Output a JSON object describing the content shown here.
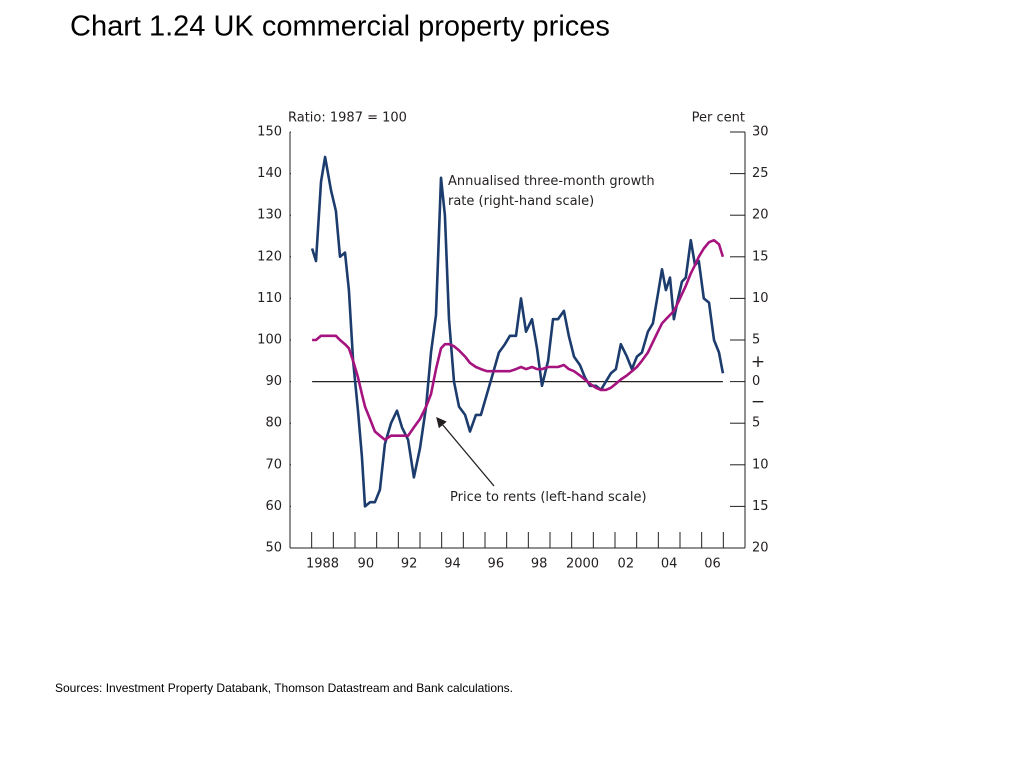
{
  "chart_data": {
    "type": "line",
    "title": "Chart 1.24  UK commercial property prices",
    "ylabel": "Ratio:  1987 = 100",
    "y2label": "Per cent",
    "sources": "Sources:  Investment Property Databank, Thomson Datastream and Bank calculations.",
    "sign_labels": [
      "+",
      "−"
    ],
    "xlim": [
      1987,
      2008
    ],
    "xticks": [
      1988,
      1989,
      1990,
      1991,
      1992,
      1993,
      1994,
      1995,
      1996,
      1997,
      1998,
      1999,
      2000,
      2001,
      2002,
      2003,
      2004,
      2005,
      2006,
      2007
    ],
    "xlabels": [
      {
        "value": 1988,
        "label": "1988"
      },
      {
        "value": 1990,
        "label": "90"
      },
      {
        "value": 1992,
        "label": "92"
      },
      {
        "value": 1994,
        "label": "94"
      },
      {
        "value": 1996,
        "label": "96"
      },
      {
        "value": 1998,
        "label": "98"
      },
      {
        "value": 2000,
        "label": "2000"
      },
      {
        "value": 2002,
        "label": "02"
      },
      {
        "value": 2004,
        "label": "04"
      },
      {
        "value": 2006,
        "label": "06"
      }
    ],
    "ylim": [
      50,
      150
    ],
    "yticks": [
      50,
      60,
      70,
      80,
      90,
      100,
      110,
      120,
      130,
      140,
      150
    ],
    "y2lim": [
      -20,
      30
    ],
    "y2ticks": [
      {
        "value": -20,
        "label": "20"
      },
      {
        "value": -15,
        "label": "15"
      },
      {
        "value": -10,
        "label": "10"
      },
      {
        "value": -5,
        "label": "5"
      },
      0,
      5,
      10,
      15,
      20,
      25,
      30
    ],
    "x": [
      1988.02,
      1988.2,
      1988.43,
      1988.62,
      1988.89,
      1989.12,
      1989.31,
      1989.54,
      1989.72,
      1989.91,
      1990.14,
      1990.32,
      1990.46,
      1990.69,
      1990.92,
      1991.15,
      1991.38,
      1991.66,
      1991.94,
      1992.17,
      1992.45,
      1992.72,
      1993.0,
      1993.28,
      1993.51,
      1993.74,
      1993.97,
      1994.15,
      1994.34,
      1994.57,
      1994.8,
      1995.08,
      1995.31,
      1995.58,
      1995.81,
      1996.09,
      1996.37,
      1996.64,
      1996.92,
      1997.15,
      1997.43,
      1997.66,
      1997.89,
      1998.17,
      1998.4,
      1998.63,
      1998.91,
      1999.14,
      1999.37,
      1999.64,
      1999.87,
      2000.11,
      2000.38,
      2000.61,
      2000.84,
      2001.12,
      2001.35,
      2001.58,
      2001.81,
      2002.04,
      2002.27,
      2002.55,
      2002.78,
      2003.01,
      2003.24,
      2003.52,
      2003.75,
      2003.98,
      2004.17,
      2004.35,
      2004.54,
      2004.72,
      2004.91,
      2005.09,
      2005.27,
      2005.5,
      2005.69,
      2005.87,
      2006.1,
      2006.34,
      2006.57,
      2006.8,
      2006.98
    ],
    "series": [
      {
        "name": "Annualised three-month growth rate (right-hand scale)",
        "color": "#1c3c6e",
        "axis": "y2",
        "values": [
          16,
          14.5,
          24,
          27,
          23,
          20.5,
          15,
          15.5,
          11,
          2.5,
          -3.5,
          -9,
          -15,
          -14.5,
          -14.5,
          -13,
          -7.5,
          -5,
          -3.5,
          -5.5,
          -7,
          -11.5,
          -8,
          -3,
          3.5,
          8,
          24.5,
          20,
          7.5,
          0,
          -3,
          -4,
          -6,
          -4,
          -4,
          -1.5,
          1,
          3.5,
          4.5,
          5.5,
          5.5,
          10,
          6,
          7.5,
          4,
          -0.5,
          2.5,
          7.5,
          7.5,
          8.5,
          5.5,
          3,
          2,
          0.5,
          -0.5,
          -0.5,
          -1,
          0,
          1,
          1.5,
          4.5,
          3,
          1.5,
          3,
          3.5,
          6,
          7,
          10.5,
          13.5,
          11,
          12.5,
          7.5,
          10,
          12,
          12.5,
          17,
          14,
          14.5,
          10,
          9.5,
          5,
          3.5,
          1
        ]
      },
      {
        "name": "Price to rents (left-hand scale)",
        "color": "#a5137f",
        "values": [
          100,
          100,
          101,
          101,
          101,
          101,
          100,
          99,
          98,
          95,
          91,
          87,
          84,
          81,
          78,
          77,
          76,
          77,
          77,
          77,
          77,
          79,
          81,
          84,
          87,
          93,
          98,
          99,
          99,
          98.5,
          97.5,
          96,
          94.5,
          93.5,
          93,
          92.5,
          92.5,
          92.5,
          92.5,
          92.5,
          93,
          93.5,
          93,
          93.5,
          93,
          93,
          93.5,
          93.5,
          93.5,
          94,
          93,
          92.5,
          91.5,
          90.5,
          89.5,
          88.5,
          88,
          88,
          88.5,
          89.5,
          90.5,
          91.5,
          92.5,
          93.5,
          95,
          97,
          99.5,
          102,
          104,
          105,
          106,
          107,
          109,
          111,
          113,
          116,
          118,
          120,
          122,
          123.5,
          124,
          123,
          120
        ]
      }
    ]
  }
}
